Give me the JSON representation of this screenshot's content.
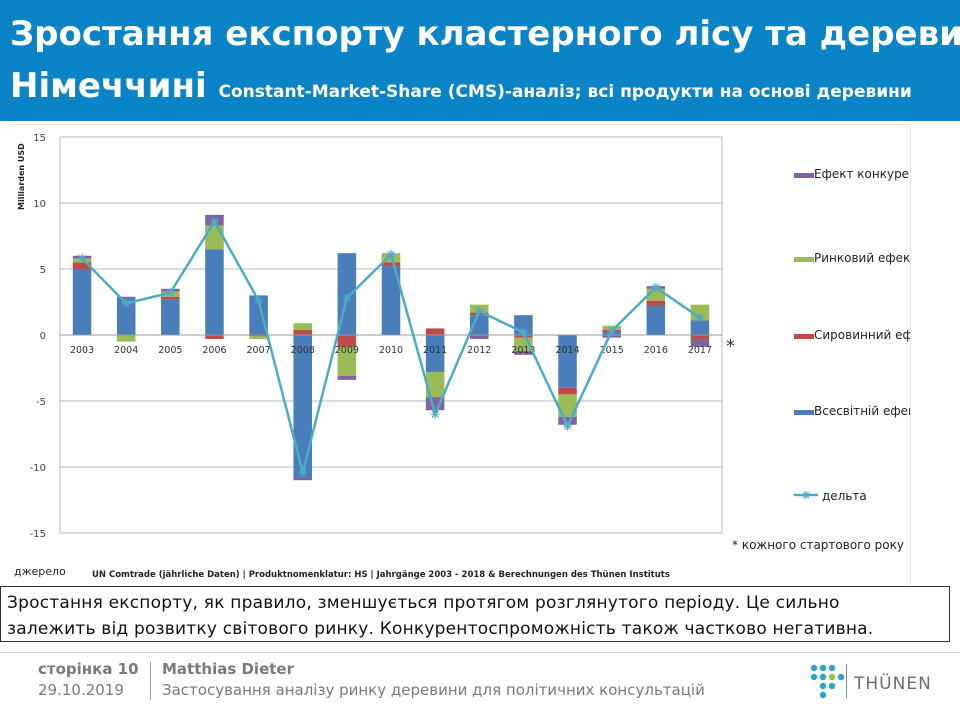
{
  "header": {
    "title_line1": "Зростання експорту кластерного лісу та деревини в",
    "title_line2": "Німеччині",
    "subtitle": "Constant-Market-Share (CMS)-аналіз; всі продукти на основі деревини"
  },
  "chart_data": {
    "type": "bar",
    "stacked": true,
    "ylabel": "Milliarden USD",
    "ylim": [
      -15,
      15
    ],
    "yticks": [
      15,
      10,
      5,
      0,
      -5,
      -10,
      -15
    ],
    "grid": true,
    "legend_position": "right",
    "categories": [
      "2003",
      "2004",
      "2005",
      "2006",
      "2007",
      "2008",
      "2009",
      "2010",
      "2011",
      "2012",
      "2013",
      "2014",
      "2015",
      "2016",
      "2017"
    ],
    "series": [
      {
        "name": "Всесвітній ефект",
        "color": "#4a7ebb",
        "values": [
          5.0,
          2.8,
          2.7,
          6.5,
          3.0,
          -10.8,
          6.2,
          5.2,
          -2.8,
          1.5,
          1.5,
          -4.0,
          0.3,
          2.2,
          1.1
        ]
      },
      {
        "name": "Сировинний ефект",
        "color": "#be4b48",
        "values": [
          0.5,
          0.0,
          0.2,
          -0.3,
          -0.1,
          0.4,
          -0.9,
          0.3,
          0.5,
          0.2,
          -0.2,
          -0.5,
          0.1,
          0.4,
          -0.3
        ]
      },
      {
        "name": "Ринковий ефект",
        "color": "#9bbb59",
        "values": [
          0.3,
          -0.5,
          0.4,
          1.8,
          -0.2,
          0.5,
          -2.2,
          0.7,
          -1.9,
          0.6,
          -1.0,
          -1.7,
          0.3,
          0.9,
          1.2
        ]
      },
      {
        "name": "Ефект конкуренції",
        "color": "#8064a2",
        "values": [
          0.2,
          0.1,
          0.2,
          0.8,
          0.0,
          -0.2,
          -0.3,
          0.0,
          -1.0,
          -0.3,
          -0.3,
          -0.6,
          -0.2,
          0.2,
          -0.6
        ]
      }
    ],
    "line": {
      "name": "дельта",
      "color": "#4bacc6",
      "values": [
        5.8,
        2.4,
        3.2,
        8.6,
        2.6,
        -10.4,
        2.8,
        6.1,
        -6.0,
        1.8,
        0.2,
        -6.9,
        0.3,
        3.6,
        1.3
      ]
    },
    "footnote_mark": "*",
    "footnote": "* кожного стартового року",
    "source_label": "джерело",
    "source_text": "UN Comtrade (jährliche Daten) | Produktnomenklatur: HS | Jahrgänge 2003 - 2018 & Berechnungen des Thünen Instituts"
  },
  "caption": {
    "line1": "Зростання експорту, як правило, зменшується протягом розглянутого періоду. Це сильно",
    "line2": "залежить від розвитку світового ринку. Конкурентоспроможність також частково негативна."
  },
  "footer": {
    "page_label": "сторінка 10",
    "date": "29.10.2019",
    "author": "Matthias Dieter",
    "talk": "Застосування аналізу ринку деревини для політичних консультацій",
    "logo_text": "THÜNEN"
  }
}
